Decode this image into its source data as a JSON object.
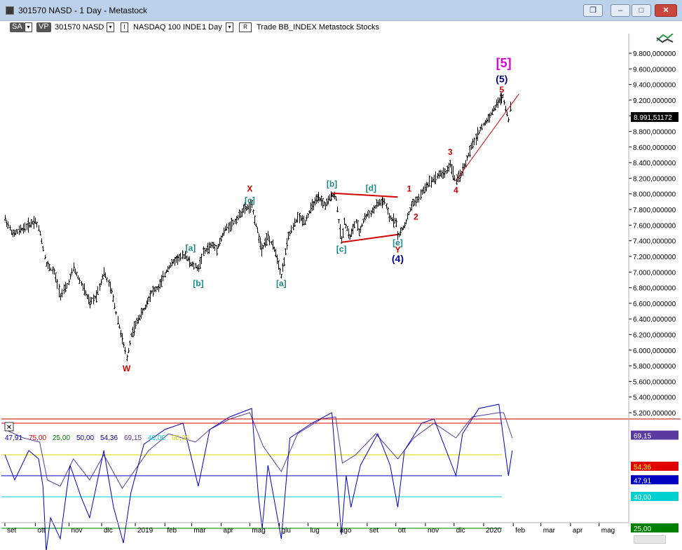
{
  "window": {
    "title": "301570 NASD - 1 Day - Metastock",
    "buttons": {
      "restore": "❐",
      "minimize": "–",
      "maximize": "□",
      "close": "✕"
    }
  },
  "toolbar": {
    "sa_label": "SA",
    "vp_label": "VP",
    "symbol": "301570 NASD",
    "instrument": "NASDAQ 100 INDE",
    "period": "1 Day",
    "r_label": "R",
    "mode_text": "Trade  BB_INDEX  Metastock  Stocks",
    "i_label": "I",
    "drop_glyph": "▾"
  },
  "colors": {
    "price_bars": "#000000",
    "wave_red": "#d40000",
    "wave_teal": "#188a8a",
    "wave_navy": "#00008b",
    "wave_magenta": "#e000e0",
    "panel_divider": "#c00000",
    "ind_purple": "#5a3aa0",
    "ind_yellow": "#d8d800",
    "ind_blue": "#0000c0",
    "ind_cyan": "#00d0d0",
    "ind_green": "#008000",
    "ind_red": "#e00000"
  },
  "chart_data": [
    {
      "type": "candlestick",
      "title": "",
      "xlabel": "",
      "ylabel": "",
      "x_ticks": [
        "set",
        "ott",
        "nov",
        "dic",
        "2019",
        "feb",
        "mar",
        "apr",
        "mag",
        "giu",
        "lug",
        "ago",
        "set",
        "ott",
        "nov",
        "dic",
        "2020",
        "feb",
        "mar",
        "apr",
        "mag"
      ],
      "y_ticks": [
        "9.800,000000",
        "9.600,000000",
        "9.400,000000",
        "9.200,000000",
        "9.000,000000",
        "8.800,000000",
        "8.600,000000",
        "8.400,000000",
        "8.200,000000",
        "8.000,000000",
        "7.800,000000",
        "7.600,000000",
        "7.400,000000",
        "7.200,000000",
        "7.000,000000",
        "6.800,000000",
        "6.600,000000",
        "6.400,000000",
        "6.200,000000",
        "6.000,000000",
        "5.800,000000",
        "5.600,000000",
        "5.400,000000",
        "5.200,000000"
      ],
      "ylim": [
        5200,
        9850
      ],
      "last_price_label": "8.991,51172",
      "price_path": [
        [
          "2018-09-03",
          7680
        ],
        [
          "2018-09-10",
          7480
        ],
        [
          "2018-09-20",
          7560
        ],
        [
          "2018-10-01",
          7660
        ],
        [
          "2018-10-05",
          7500
        ],
        [
          "2018-10-11",
          7100
        ],
        [
          "2018-10-18",
          7000
        ],
        [
          "2018-10-24",
          6700
        ],
        [
          "2018-10-30",
          6820
        ],
        [
          "2018-11-05",
          7050
        ],
        [
          "2018-11-12",
          6850
        ],
        [
          "2018-11-20",
          6600
        ],
        [
          "2018-11-26",
          6700
        ],
        [
          "2018-12-03",
          7000
        ],
        [
          "2018-12-10",
          6750
        ],
        [
          "2018-12-17",
          6300
        ],
        [
          "2018-12-24",
          5900
        ],
        [
          "2018-12-28",
          6200
        ],
        [
          "2019-01-04",
          6400
        ],
        [
          "2019-01-11",
          6550
        ],
        [
          "2019-01-18",
          6750
        ],
        [
          "2019-01-25",
          6800
        ],
        [
          "2019-02-04",
          7050
        ],
        [
          "2019-02-11",
          7150
        ],
        [
          "2019-02-22",
          7220
        ],
        [
          "2019-02-28",
          7100
        ],
        [
          "2019-03-08",
          7050
        ],
        [
          "2019-03-13",
          7250
        ],
        [
          "2019-03-22",
          7350
        ],
        [
          "2019-03-27",
          7300
        ],
        [
          "2019-04-05",
          7550
        ],
        [
          "2019-04-15",
          7650
        ],
        [
          "2019-04-24",
          7800
        ],
        [
          "2019-05-03",
          7850
        ],
        [
          "2019-05-07",
          7600
        ],
        [
          "2019-05-13",
          7300
        ],
        [
          "2019-05-20",
          7450
        ],
        [
          "2019-05-28",
          7250
        ],
        [
          "2019-06-03",
          6950
        ],
        [
          "2019-06-10",
          7450
        ],
        [
          "2019-06-20",
          7700
        ],
        [
          "2019-06-28",
          7650
        ],
        [
          "2019-07-05",
          7850
        ],
        [
          "2019-07-12",
          7950
        ],
        [
          "2019-07-19",
          7850
        ],
        [
          "2019-07-26",
          8000
        ],
        [
          "2019-07-30",
          7950
        ],
        [
          "2019-08-02",
          7650
        ],
        [
          "2019-08-05",
          7400
        ],
        [
          "2019-08-08",
          7650
        ],
        [
          "2019-08-14",
          7450
        ],
        [
          "2019-08-20",
          7650
        ],
        [
          "2019-08-23",
          7500
        ],
        [
          "2019-08-29",
          7700
        ],
        [
          "2019-09-06",
          7780
        ],
        [
          "2019-09-12",
          7880
        ],
        [
          "2019-09-19",
          7900
        ],
        [
          "2019-09-24",
          7700
        ],
        [
          "2019-10-01",
          7650
        ],
        [
          "2019-10-03",
          7450
        ],
        [
          "2019-10-10",
          7600
        ],
        [
          "2019-10-17",
          7850
        ],
        [
          "2019-10-25",
          7950
        ],
        [
          "2019-10-30",
          8050
        ],
        [
          "2019-11-05",
          8150
        ],
        [
          "2019-11-15",
          8250
        ],
        [
          "2019-11-22",
          8280
        ],
        [
          "2019-11-27",
          8380
        ],
        [
          "2019-12-03",
          8150
        ],
        [
          "2019-12-10",
          8300
        ],
        [
          "2019-12-17",
          8550
        ],
        [
          "2019-12-27",
          8800
        ],
        [
          "2020-01-10",
          9050
        ],
        [
          "2020-01-17",
          9200
        ],
        [
          "2020-01-21",
          9250
        ],
        [
          "2020-01-24",
          9100
        ],
        [
          "2020-01-27",
          8950
        ],
        [
          "2020-01-29",
          9100
        ],
        [
          "2020-01-31",
          8990
        ]
      ],
      "annotations": [
        {
          "label": "W",
          "x": "2018-12-24",
          "y": 5730,
          "color": "wave_red"
        },
        {
          "label": "[a]",
          "x": "2019-02-28",
          "y": 7270,
          "color": "wave_teal"
        },
        {
          "label": "[b]",
          "x": "2019-03-08",
          "y": 6820,
          "color": "wave_teal"
        },
        {
          "label": "[c]",
          "x": "2019-05-01",
          "y": 7880,
          "color": "wave_teal"
        },
        {
          "label": "X",
          "x": "2019-05-01",
          "y": 8030,
          "color": "wave_red"
        },
        {
          "label": "[a]",
          "x": "2019-06-03",
          "y": 6820,
          "color": "wave_teal"
        },
        {
          "label": "[b]",
          "x": "2019-07-26",
          "y": 8090,
          "color": "wave_teal"
        },
        {
          "label": "[c]",
          "x": "2019-08-05",
          "y": 7260,
          "color": "wave_teal"
        },
        {
          "label": "[d]",
          "x": "2019-09-05",
          "y": 8040,
          "color": "wave_teal"
        },
        {
          "label": "[e]",
          "x": "2019-10-03",
          "y": 7340,
          "color": "wave_teal"
        },
        {
          "label": "Y",
          "x": "2019-10-03",
          "y": 7250,
          "color": "wave_red"
        },
        {
          "label": "(4)",
          "x": "2019-10-03",
          "y": 7130,
          "color": "wave_navy"
        },
        {
          "label": "1",
          "x": "2019-10-15",
          "y": 8030,
          "color": "wave_red"
        },
        {
          "label": "2",
          "x": "2019-10-22",
          "y": 7670,
          "color": "wave_red"
        },
        {
          "label": "3",
          "x": "2019-11-27",
          "y": 8500,
          "color": "wave_red"
        },
        {
          "label": "4",
          "x": "2019-12-03",
          "y": 8010,
          "color": "wave_red"
        },
        {
          "label": "5",
          "x": "2020-01-20",
          "y": 9300,
          "color": "wave_red"
        },
        {
          "label": "(5)",
          "x": "2020-01-20",
          "y": 9430,
          "color": "wave_navy"
        },
        {
          "label": "[5]",
          "x": "2020-01-22",
          "y": 9620,
          "color": "wave_magenta"
        }
      ],
      "trendlines": [
        {
          "from": [
            "2019-07-26",
            8010
          ],
          "to": [
            "2019-10-03",
            7960
          ],
          "color": "wave_red"
        },
        {
          "from": [
            "2019-08-05",
            7380
          ],
          "to": [
            "2019-10-03",
            7480
          ],
          "color": "wave_red"
        },
        {
          "from": [
            "2019-12-03",
            8170
          ],
          "to": [
            "2020-02-07",
            9280
          ],
          "color": "wave_red"
        }
      ]
    },
    {
      "type": "line",
      "title": "",
      "close_button": "✕",
      "ylim": [
        10,
        95
      ],
      "legend_values": [
        {
          "text": "47,91",
          "color": "ind_blue"
        },
        {
          "text": "75,00",
          "color": "ind_red"
        },
        {
          "text": "25,00",
          "color": "ind_green"
        },
        {
          "text": "50,00",
          "color": "ind_blue"
        },
        {
          "text": "54,36",
          "color": "wave_navy"
        },
        {
          "text": "69,15",
          "color": "ind_purple"
        },
        {
          "text": "40,00",
          "color": "ind_cyan"
        },
        {
          "text": "60,00",
          "color": "ind_yellow"
        }
      ],
      "levels": [
        {
          "value": 75,
          "label": "",
          "color": "ind_red"
        },
        {
          "value": 60,
          "label": "",
          "color": "ind_yellow"
        },
        {
          "value": 50,
          "label": "",
          "color": "ind_blue"
        },
        {
          "value": 40,
          "label": "40,00",
          "color": "ind_cyan"
        },
        {
          "value": 25,
          "label": "25,00",
          "color": "ind_green"
        }
      ],
      "series": [
        {
          "color": "ind_purple",
          "points": [
            [
              "2018-09-03",
              72
            ],
            [
              "2018-09-20",
              68
            ],
            [
              "2018-10-05",
              66
            ],
            [
              "2018-10-12",
              48
            ],
            [
              "2018-10-24",
              45
            ],
            [
              "2018-11-05",
              58
            ],
            [
              "2018-11-20",
              48
            ],
            [
              "2018-12-03",
              60
            ],
            [
              "2018-12-20",
              44
            ],
            [
              "2018-12-28",
              50
            ],
            [
              "2019-01-15",
              62
            ],
            [
              "2019-02-05",
              70
            ],
            [
              "2019-03-05",
              66
            ],
            [
              "2019-03-20",
              72
            ],
            [
              "2019-04-10",
              77
            ],
            [
              "2019-05-01",
              80
            ],
            [
              "2019-05-15",
              64
            ],
            [
              "2019-06-03",
              52
            ],
            [
              "2019-06-20",
              70
            ],
            [
              "2019-07-15",
              77
            ],
            [
              "2019-07-30",
              78
            ],
            [
              "2019-08-06",
              56
            ],
            [
              "2019-08-20",
              60
            ],
            [
              "2019-09-10",
              70
            ],
            [
              "2019-10-03",
              58
            ],
            [
              "2019-10-20",
              68
            ],
            [
              "2019-11-10",
              75
            ],
            [
              "2019-12-03",
              68
            ],
            [
              "2019-12-20",
              78
            ],
            [
              "2020-01-17",
              80
            ],
            [
              "2020-01-22",
              80
            ],
            [
              "2020-01-31",
              68
            ]
          ]
        },
        {
          "color": "ind_blue",
          "points": [
            [
              "2018-09-03",
              60
            ],
            [
              "2018-09-12",
              48
            ],
            [
              "2018-09-25",
              62
            ],
            [
              "2018-10-04",
              58
            ],
            [
              "2018-10-08",
              45
            ],
            [
              "2018-10-11",
              14
            ],
            [
              "2018-10-15",
              30
            ],
            [
              "2018-10-24",
              20
            ],
            [
              "2018-11-02",
              55
            ],
            [
              "2018-11-12",
              40
            ],
            [
              "2018-11-20",
              30
            ],
            [
              "2018-12-03",
              62
            ],
            [
              "2018-12-12",
              35
            ],
            [
              "2018-12-21",
              18
            ],
            [
              "2018-12-28",
              42
            ],
            [
              "2019-01-10",
              65
            ],
            [
              "2019-02-01",
              72
            ],
            [
              "2019-02-20",
              75
            ],
            [
              "2019-03-08",
              45
            ],
            [
              "2019-03-20",
              72
            ],
            [
              "2019-04-10",
              78
            ],
            [
              "2019-05-03",
              82
            ],
            [
              "2019-05-10",
              40
            ],
            [
              "2019-05-14",
              25
            ],
            [
              "2019-05-20",
              55
            ],
            [
              "2019-06-03",
              20
            ],
            [
              "2019-06-12",
              68
            ],
            [
              "2019-07-05",
              75
            ],
            [
              "2019-07-26",
              80
            ],
            [
              "2019-08-05",
              22
            ],
            [
              "2019-08-10",
              50
            ],
            [
              "2019-08-15",
              35
            ],
            [
              "2019-08-25",
              55
            ],
            [
              "2019-09-12",
              70
            ],
            [
              "2019-09-25",
              55
            ],
            [
              "2019-10-03",
              35
            ],
            [
              "2019-10-10",
              62
            ],
            [
              "2019-10-28",
              75
            ],
            [
              "2019-11-10",
              77
            ],
            [
              "2019-12-03",
              50
            ],
            [
              "2019-12-10",
              70
            ],
            [
              "2019-12-27",
              82
            ],
            [
              "2020-01-17",
              84
            ],
            [
              "2020-01-27",
              50
            ],
            [
              "2020-01-31",
              62
            ]
          ]
        }
      ]
    }
  ]
}
